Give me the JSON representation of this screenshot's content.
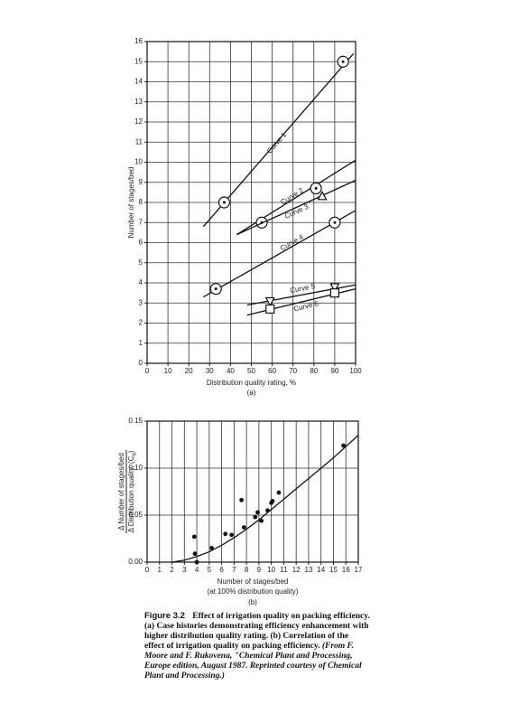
{
  "chart_data": [
    {
      "type": "line",
      "sublabel": "(a)",
      "x_label": "Distribution quality rating, %",
      "y_label": "Number of stages/bed",
      "xlim": [
        0,
        100
      ],
      "xticks": [
        0,
        10,
        20,
        30,
        40,
        50,
        60,
        70,
        80,
        90,
        100
      ],
      "ylim": [
        0,
        16
      ],
      "yticks": [
        0,
        1,
        2,
        3,
        4,
        5,
        6,
        7,
        8,
        9,
        10,
        11,
        12,
        13,
        14,
        15,
        16
      ],
      "grid": true,
      "color": "#111111",
      "series": [
        {
          "name": "Curve 1",
          "x": [
            27,
            99
          ],
          "values": [
            6.8,
            15.4
          ],
          "marker": "circle",
          "marker_x": [
            37,
            94
          ],
          "marker_values": [
            8.0,
            15.0
          ]
        },
        {
          "name": "Curve 2",
          "x": [
            43,
            100
          ],
          "values": [
            6.4,
            10.1
          ],
          "marker": "circle",
          "marker_x": [
            55,
            81
          ],
          "marker_values": [
            7.0,
            8.7
          ]
        },
        {
          "name": "Curve 3",
          "x": [
            43,
            100
          ],
          "values": [
            6.4,
            9.1
          ],
          "marker": "triangle",
          "marker_x": [
            84
          ],
          "marker_values": [
            8.3
          ]
        },
        {
          "name": "Curve 4",
          "x": [
            27,
            100
          ],
          "values": [
            3.3,
            7.6
          ],
          "marker": "circle",
          "marker_x": [
            33,
            90
          ],
          "marker_values": [
            3.7,
            7.0
          ]
        },
        {
          "name": "Curve 5",
          "x": [
            48,
            100
          ],
          "values": [
            2.9,
            3.9
          ],
          "marker": "triangle-down",
          "marker_x": [
            59,
            90
          ],
          "marker_values": [
            3.1,
            3.8
          ]
        },
        {
          "name": "Curve 6",
          "x": [
            48,
            100
          ],
          "values": [
            2.4,
            3.7
          ],
          "marker": "square",
          "marker_x": [
            59,
            90
          ],
          "marker_values": [
            2.7,
            3.5
          ]
        }
      ]
    },
    {
      "type": "scatter",
      "sublabel": "(b)",
      "x_label": "Number of stages/bed",
      "x_label_note": "(at 100% distribution quality)",
      "y_label": "Δ Number of stages/bed",
      "y_label_denominator": "Δ Distribution quality, (C",
      "y_label_subscript": "q",
      "y_label_end": ")",
      "xlim": [
        0,
        17
      ],
      "xticks": [
        0,
        1,
        2,
        3,
        4,
        5,
        6,
        7,
        8,
        9,
        10,
        11,
        12,
        13,
        14,
        15,
        16,
        17
      ],
      "ylim": [
        0,
        0.15
      ],
      "yticks": [
        {
          "value": 0,
          "label": "0.00"
        },
        0.05,
        {
          "value": 0.1,
          "label": "0.10"
        },
        0.15
      ],
      "grid": true,
      "color": "#111111",
      "x": [
        3.8,
        3.85,
        4.0,
        5.2,
        6.3,
        6.8,
        7.8,
        7.6,
        8.7,
        8.9,
        9.2,
        9.7,
        10.0,
        10.1,
        10.6,
        15.8
      ],
      "values": [
        0.027,
        0.009,
        0.0,
        0.015,
        0.03,
        0.029,
        0.037,
        0.066,
        0.048,
        0.053,
        0.044,
        0.055,
        0.063,
        0.065,
        0.074,
        0.124
      ],
      "fit_x": [
        2.0,
        3,
        4,
        5,
        6,
        7,
        8,
        9,
        10,
        11,
        12,
        13,
        14,
        15,
        16,
        17
      ],
      "fit_values": [
        0.0,
        0.002,
        0.006,
        0.011,
        0.018,
        0.026,
        0.035,
        0.045,
        0.056,
        0.067,
        0.078,
        0.089,
        0.1,
        0.111,
        0.123,
        0.135
      ]
    }
  ],
  "figure_caption": {
    "label": "Figure 3.2",
    "text": "Effect of irrigation quality on packing efficiency. (a) Case histories demonstrating efficiency enhancement with higher distribution quality rating. (b) Correlation of the effect of irrigation quality on packing efficiency.",
    "source": "(From F. Moore and F. Rukovena, \"Chemical Plant and Processing, Europe edition, August 1987. Reprinted courtesy of Chemical Plant and Processing.)"
  }
}
